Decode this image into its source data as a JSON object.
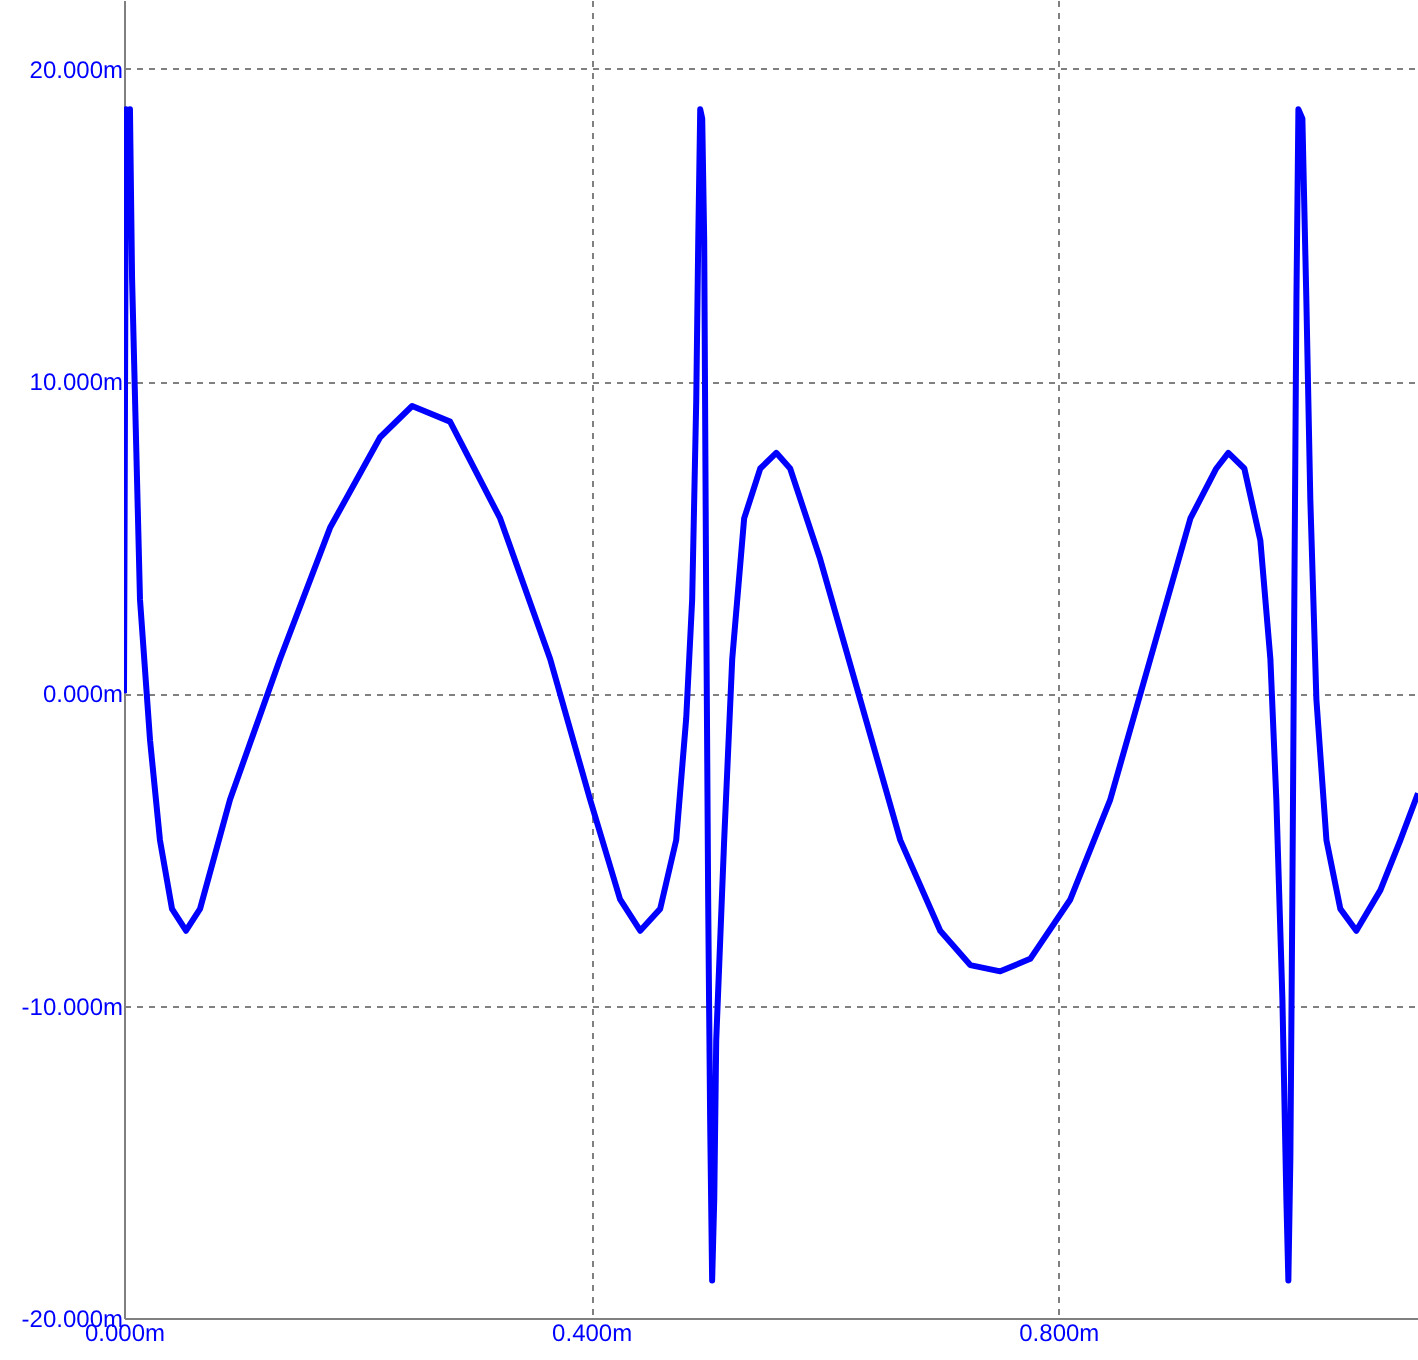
{
  "chart_data": {
    "type": "line",
    "grid": true,
    "xlim": [
      0,
      1.108
    ],
    "ylim": [
      -20,
      22.2
    ],
    "xticks": [
      {
        "value": 0,
        "label": "0.000m"
      },
      {
        "value": 0.4,
        "label": "0.400m"
      },
      {
        "value": 0.8,
        "label": "0.800m"
      }
    ],
    "yticks": [
      {
        "value": -20,
        "label": "-20.000m"
      },
      {
        "value": -10,
        "label": "-10.000m"
      },
      {
        "value": 0,
        "label": "0.000m"
      },
      {
        "value": 10,
        "label": "10.000m"
      },
      {
        "value": 20,
        "label": "20.000m"
      }
    ],
    "x": [
      0,
      0.0017,
      0.0034,
      0.0051,
      0.0069,
      0.0137,
      0.0223,
      0.0308,
      0.0411,
      0.0531,
      0.0651,
      0.0908,
      0.1336,
      0.1764,
      0.2193,
      0.2467,
      0.2792,
      0.3221,
      0.3649,
      0.3991,
      0.4248,
      0.442,
      0.4591,
      0.4728,
      0.4814,
      0.4865,
      0.49,
      0.4917,
      0.4934,
      0.4951,
      0.4968,
      0.4985,
      0.5002,
      0.5019,
      0.5036,
      0.5054,
      0.5071,
      0.5139,
      0.5208,
      0.531,
      0.5448,
      0.5585,
      0.5704,
      0.5961,
      0.6304,
      0.6647,
      0.6989,
      0.7246,
      0.7503,
      0.776,
      0.8103,
      0.8445,
      0.8788,
      0.9131,
      0.9353,
      0.9456,
      0.9593,
      0.973,
      0.9816,
      0.9867,
      0.9919,
      0.9953,
      0.997,
      0.9987,
      1.0004,
      1.0021,
      1.0039,
      1.0056,
      1.009,
      1.0124,
      1.0158,
      1.021,
      1.0296,
      1.0415,
      1.0552,
      1.0758,
      1.0929,
      1.108
    ],
    "series": [
      {
        "color": "#0000ff",
        "values": [
          0,
          18.7,
          15.8,
          18.7,
          13.3,
          3.0,
          -1.5,
          -4.7,
          -6.9,
          -7.6,
          -6.9,
          -3.4,
          1.1,
          5.3,
          8.2,
          9.2,
          8.7,
          5.6,
          1.1,
          -3.4,
          -6.6,
          -7.6,
          -6.9,
          -4.7,
          -0.8,
          3.0,
          9.4,
          14.5,
          18.7,
          18.4,
          14.5,
          3.0,
          -6.6,
          -13.7,
          -18.8,
          -16.2,
          -11.1,
          -4.7,
          1.1,
          5.6,
          7.2,
          7.7,
          7.2,
          4.3,
          -0.2,
          -4.7,
          -7.6,
          -8.7,
          -8.9,
          -8.5,
          -6.6,
          -3.4,
          1.1,
          5.6,
          7.2,
          7.7,
          7.2,
          4.9,
          1.1,
          -3.4,
          -9.8,
          -16.2,
          -18.8,
          -14.9,
          -6.6,
          3.0,
          12.6,
          18.7,
          18.4,
          12.6,
          6.2,
          -0.2,
          -4.7,
          -6.9,
          -7.6,
          -6.3,
          -4.7,
          -3.2
        ]
      }
    ]
  }
}
